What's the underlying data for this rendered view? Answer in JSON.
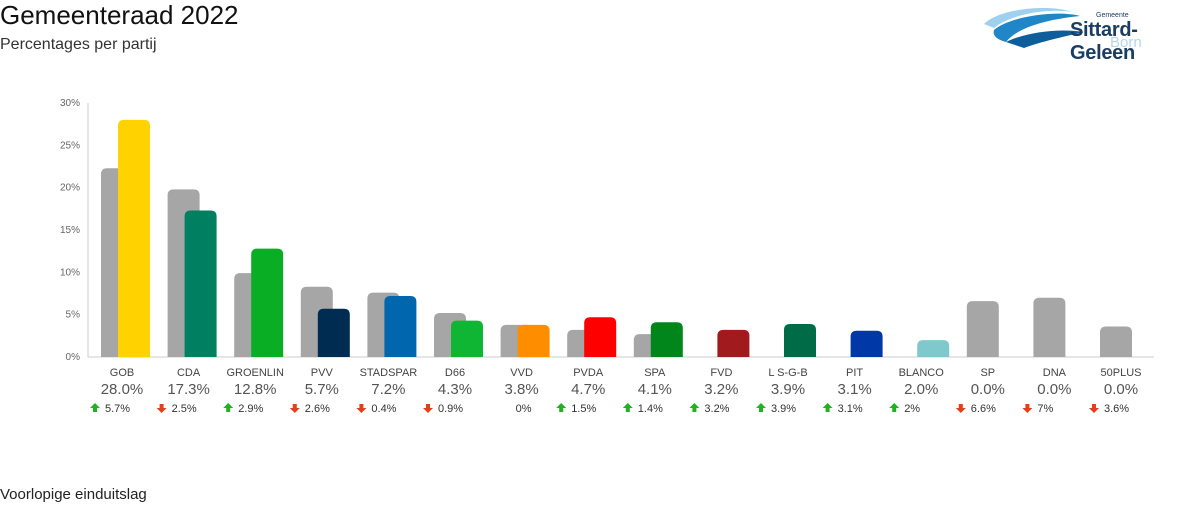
{
  "header": {
    "title": "Gemeenteraad 2022",
    "subtitle": "Percentages per partij"
  },
  "logo": {
    "small": "Gemeente",
    "main": "Sittard-Geleen",
    "sub": "Born"
  },
  "footer": {
    "note": "Voorlopige einduitslag"
  },
  "colors": {
    "previous": "#a6a6a6",
    "up": "#1fb31f",
    "down": "#e3401a"
  },
  "chart_data": {
    "type": "bar",
    "title": "Gemeenteraad 2022",
    "subtitle": "Percentages per partij",
    "ylim": [
      0,
      30
    ],
    "yticks": [
      "0%",
      "5%",
      "10%",
      "15%",
      "20%",
      "25%",
      "30%"
    ],
    "grid": false,
    "categories": [
      "GOB",
      "CDA",
      "GROENLIN",
      "PVV",
      "STADSPAR",
      "D66",
      "VVD",
      "PVDA",
      "SPA",
      "FVD",
      "L S-G-B",
      "PIT",
      "BLANCO",
      "SP",
      "DNA",
      "50PLUS"
    ],
    "series": [
      {
        "values": [
          22.3,
          19.8,
          9.9,
          8.3,
          7.6,
          5.2,
          3.8,
          3.2,
          2.7,
          0,
          0,
          0,
          0,
          6.6,
          7.0,
          3.6
        ],
        "color": "#a6a6a6"
      },
      {
        "values": [
          28.0,
          17.3,
          12.8,
          5.7,
          7.2,
          4.3,
          3.8,
          4.7,
          4.1,
          3.2,
          3.9,
          3.1,
          2.0,
          0.0,
          0.0,
          0.0
        ]
      }
    ],
    "bar_colors": [
      "#ffd200",
      "#008060",
      "#09ae24",
      "#002c52",
      "#0066ad",
      "#0eb634",
      "#ff8d00",
      "#ff0000",
      "#00861a",
      "#a01a1e",
      "#006b47",
      "#0038a8",
      "#7fc8cc",
      "#a6a6a6",
      "#a6a6a6",
      "#a6a6a6"
    ],
    "pct_labels": [
      "28.0%",
      "17.3%",
      "12.8%",
      "5.7%",
      "7.2%",
      "4.3%",
      "3.8%",
      "4.7%",
      "4.1%",
      "3.2%",
      "3.9%",
      "3.1%",
      "2.0%",
      "0.0%",
      "0.0%",
      "0.0%"
    ],
    "change_labels": [
      "5.7%",
      "2.5%",
      "2.9%",
      "2.6%",
      "0.4%",
      "0.9%",
      "0%",
      "1.5%",
      "1.4%",
      "3.2%",
      "3.9%",
      "3.1%",
      "2%",
      "6.6%",
      "7%",
      "3.6%"
    ],
    "change_dir": [
      "up",
      "down",
      "up",
      "down",
      "down",
      "down",
      "none",
      "up",
      "up",
      "up",
      "up",
      "up",
      "up",
      "down",
      "down",
      "down"
    ]
  }
}
